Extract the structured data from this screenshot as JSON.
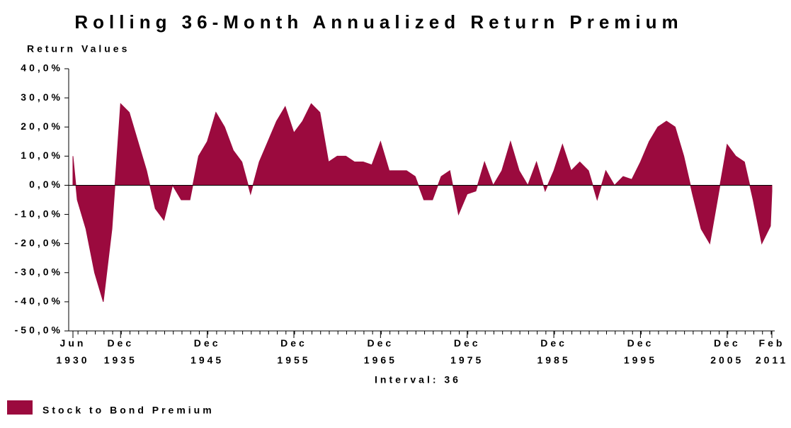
{
  "chart_data": {
    "type": "area",
    "title": "Rolling 36-Month Annualized Return Premium",
    "y_label": "Return Values",
    "x_label": "Interval: 36",
    "xlim": [
      "1930-06",
      "2011-02"
    ],
    "xticks": [
      {
        "value": "1930-06",
        "label": "Jun 1930"
      },
      {
        "value": "1935-12",
        "label": "Dec 1935"
      },
      {
        "value": "1945-12",
        "label": "Dec 1945"
      },
      {
        "value": "1955-12",
        "label": "Dec 1955"
      },
      {
        "value": "1965-12",
        "label": "Dec 1965"
      },
      {
        "value": "1975-12",
        "label": "Dec 1975"
      },
      {
        "value": "1985-12",
        "label": "Dec 1985"
      },
      {
        "value": "1995-12",
        "label": "Dec 1995"
      },
      {
        "value": "2005-12",
        "label": "Dec 2005"
      },
      {
        "value": "2011-02",
        "label": "Feb 2011"
      }
    ],
    "ylim": [
      -50,
      40
    ],
    "yticks": [
      {
        "value": -50,
        "label": "-50,0%"
      },
      {
        "value": -40,
        "label": "-40,0%"
      },
      {
        "value": -30,
        "label": "-30,0%"
      },
      {
        "value": -20,
        "label": "-20,0%"
      },
      {
        "value": -10,
        "label": "-10,0%"
      },
      {
        "value": 0,
        "label": "0,0%"
      },
      {
        "value": 10,
        "label": "10,0%"
      },
      {
        "value": 20,
        "label": "20,0%"
      },
      {
        "value": 30,
        "label": "30,0%"
      },
      {
        "value": 40,
        "label": "40,0%"
      }
    ],
    "x": [
      "1930-06",
      "1930-12",
      "1931-12",
      "1932-12",
      "1933-12",
      "1934-12",
      "1935-12",
      "1936-12",
      "1937-12",
      "1938-12",
      "1939-12",
      "1940-12",
      "1941-12",
      "1942-12",
      "1943-12",
      "1944-12",
      "1945-12",
      "1946-12",
      "1947-12",
      "1948-12",
      "1949-12",
      "1950-12",
      "1951-12",
      "1952-12",
      "1953-12",
      "1954-12",
      "1955-12",
      "1956-12",
      "1957-12",
      "1958-12",
      "1959-12",
      "1960-12",
      "1961-12",
      "1962-12",
      "1963-12",
      "1964-12",
      "1965-12",
      "1966-12",
      "1967-12",
      "1968-12",
      "1969-12",
      "1970-12",
      "1971-12",
      "1972-12",
      "1973-12",
      "1974-12",
      "1975-12",
      "1976-12",
      "1977-12",
      "1978-12",
      "1979-12",
      "1980-12",
      "1981-12",
      "1982-12",
      "1983-12",
      "1984-12",
      "1985-12",
      "1986-12",
      "1987-12",
      "1988-12",
      "1989-12",
      "1990-12",
      "1991-12",
      "1992-12",
      "1993-12",
      "1994-12",
      "1995-12",
      "1996-12",
      "1997-12",
      "1998-12",
      "1999-12",
      "2000-12",
      "2001-12",
      "2002-12",
      "2003-12",
      "2004-12",
      "2005-12",
      "2006-12",
      "2007-12",
      "2008-12",
      "2009-12",
      "2010-12",
      "2011-02"
    ],
    "series": [
      {
        "name": "Stock to Bond Premium",
        "color": "#9b0a3e",
        "values": [
          10,
          -5,
          -15,
          -30,
          -40,
          -15,
          28,
          25,
          15,
          5,
          -8,
          -12,
          0,
          -5,
          -5,
          10,
          15,
          25,
          20,
          12,
          8,
          -3,
          8,
          15,
          22,
          27,
          18,
          22,
          28,
          25,
          8,
          10,
          10,
          8,
          8,
          7,
          15,
          5,
          5,
          5,
          3,
          -5,
          -5,
          3,
          5,
          -10,
          -3,
          -2,
          8,
          0,
          5,
          15,
          5,
          0,
          8,
          -2,
          5,
          14,
          5,
          8,
          5,
          -5,
          5,
          0,
          3,
          2,
          8,
          15,
          20,
          22,
          20,
          10,
          -3,
          -15,
          -20,
          -3,
          14,
          10,
          8,
          -5,
          -20,
          -14,
          -2
        ]
      }
    ],
    "legend": "bottom-left"
  }
}
